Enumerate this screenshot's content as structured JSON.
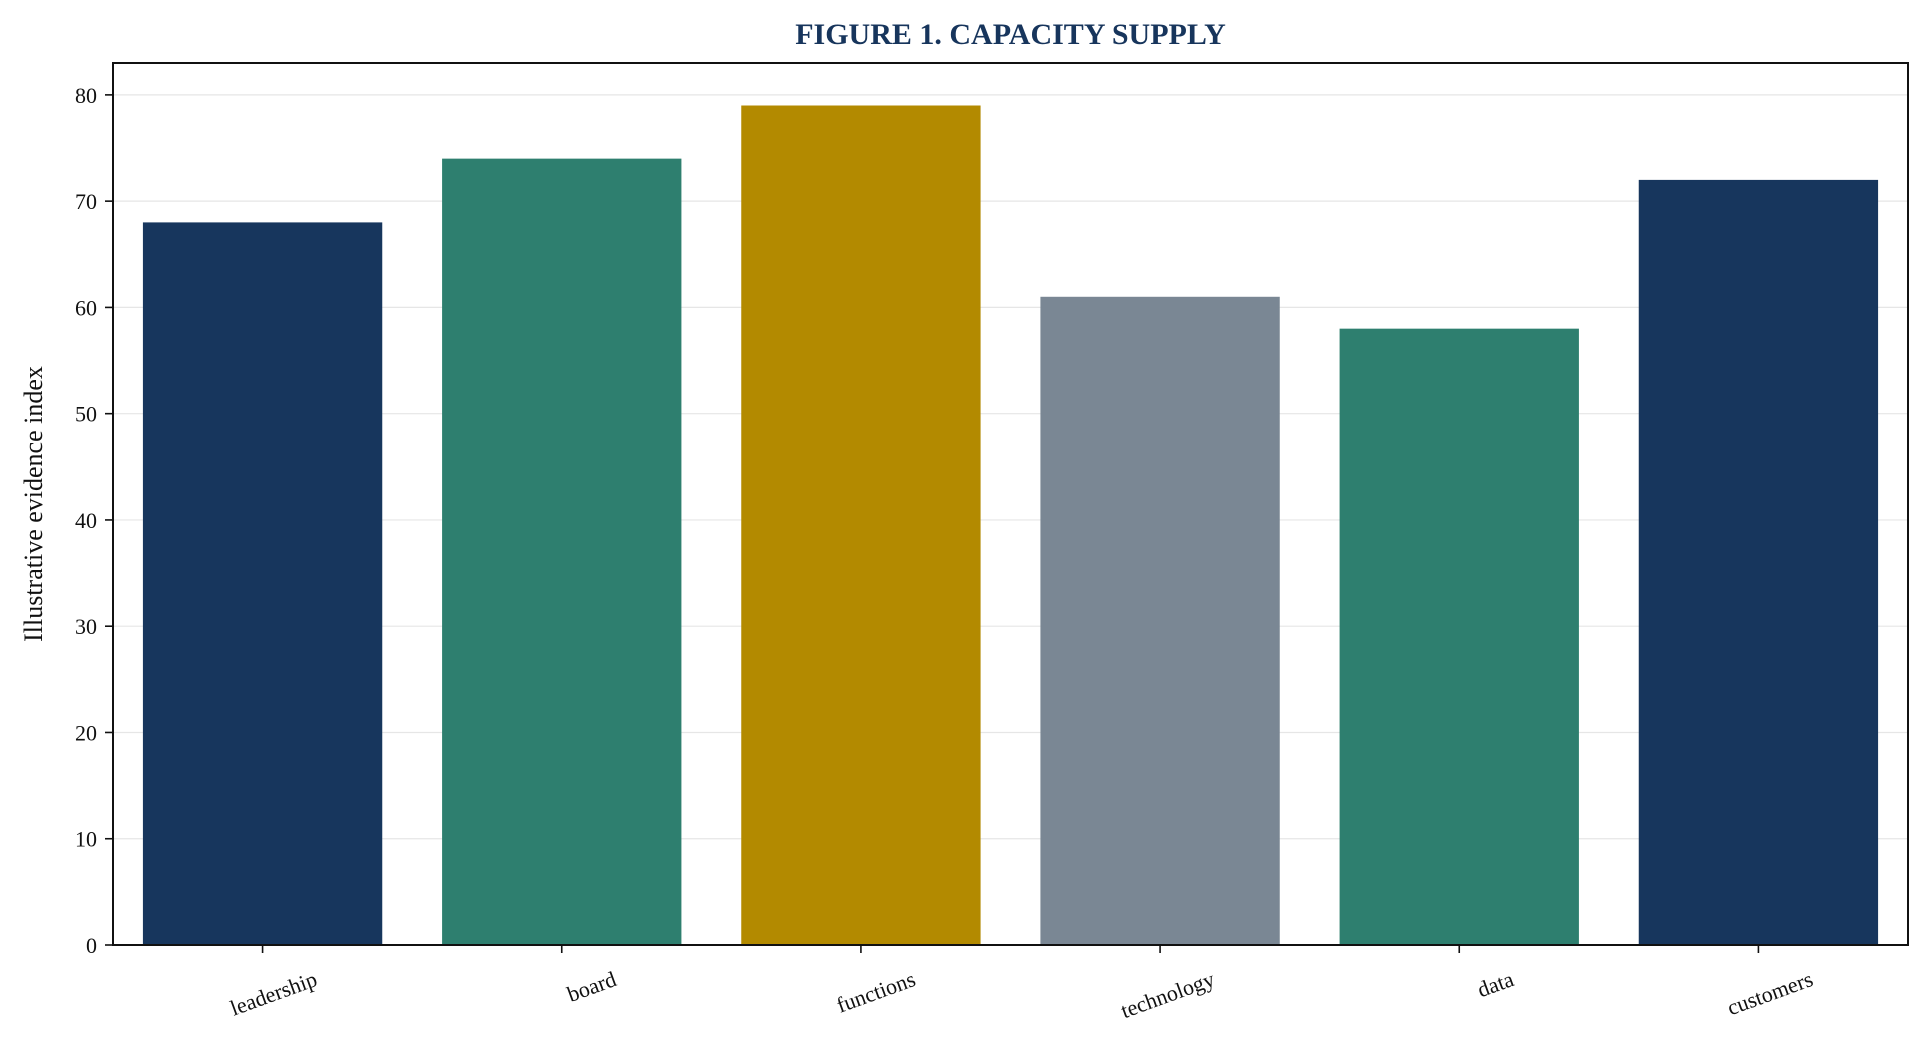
{
  "chart_data": {
    "type": "bar",
    "title": "FIGURE 1. CAPACITY SUPPLY",
    "xlabel": "",
    "ylabel": "Illustrative evidence index",
    "categories": [
      "leadership",
      "board",
      "functions",
      "technology",
      "data",
      "customers"
    ],
    "values": [
      68,
      74,
      79,
      61,
      58,
      72
    ],
    "bar_colors": [
      "#17365d",
      "#2e7f6f",
      "#b38a00",
      "#7a8794",
      "#2e7f6f",
      "#17365d"
    ],
    "ylim": [
      0,
      83
    ],
    "yticks": [
      0,
      10,
      20,
      30,
      40,
      50,
      60,
      70,
      80
    ],
    "grid": "horizontal",
    "legend": "none",
    "colors": {
      "title": "#17355c",
      "axis": "#111111",
      "grid": "#e6e6e6"
    }
  }
}
